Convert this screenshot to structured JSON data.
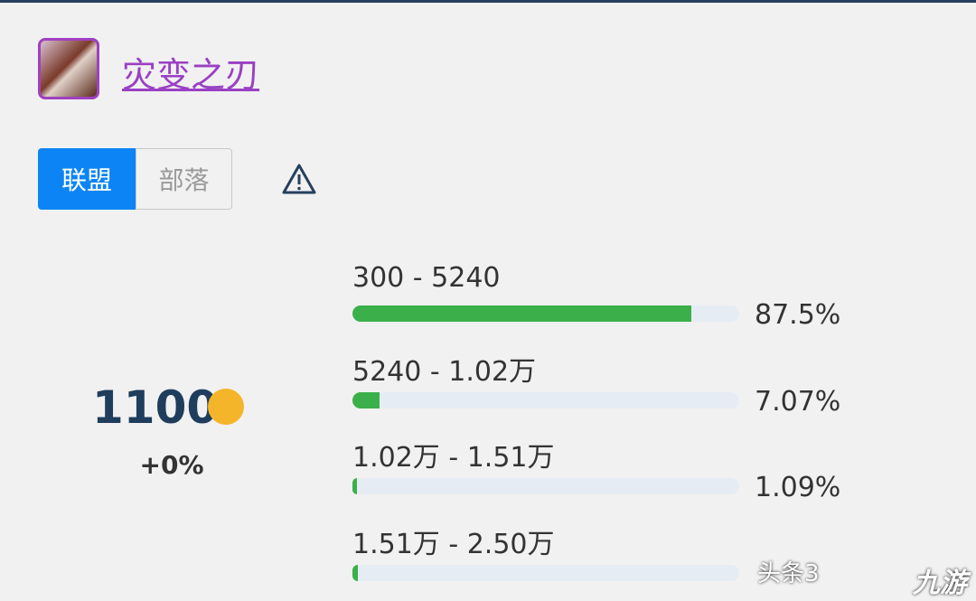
{
  "item": {
    "name": "灾变之刃"
  },
  "tabs": [
    "联盟",
    "部落"
  ],
  "price": {
    "value": "1100",
    "change": "+0%"
  },
  "distribution": {
    "ranges": [
      "300 - 5240",
      "5240 - 1.02万",
      "1.02万 - 1.51万",
      "1.51万 - 2.50万"
    ],
    "values": [
      87.5,
      7.07,
      1.09,
      1.5
    ],
    "value_labels": [
      "87.5%",
      "7.07%",
      "1.09%",
      null
    ],
    "xlim": [
      0,
      100
    ],
    "color": "#3bb04a"
  },
  "watermark": [
    "头条3",
    "九游"
  ]
}
